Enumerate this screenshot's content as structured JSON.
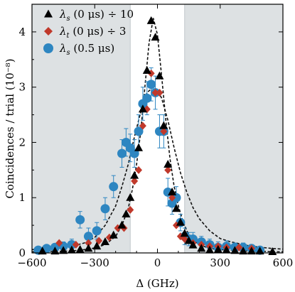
{
  "chart_data": {
    "type": "scatter",
    "xlabel": "Δ (GHz)",
    "ylabel": "Coincidences / trial (10⁻⁸)",
    "xlim": [
      -600,
      600
    ],
    "ylim": [
      0,
      4.5
    ],
    "xticks": [
      -600,
      -300,
      0,
      300,
      600
    ],
    "xtick_labels": [
      "−600",
      "−300",
      "0",
      "300",
      "600"
    ],
    "yticks": [
      0,
      1,
      2,
      3,
      4
    ],
    "ytick_labels": [
      "0",
      "1",
      "2",
      "3",
      "4"
    ],
    "shaded_x_ranges": [
      [
        -600,
        -130
      ],
      [
        130,
        600
      ]
    ],
    "shade_color": "#dde1e3",
    "grid": false,
    "legend_position": "top-left",
    "legend": {
      "s1": {
        "prefix": "λ",
        "sub": "s",
        "suffix": " (0 μs) ÷ 10"
      },
      "s2": {
        "prefix": "λ",
        "sub": "t",
        "suffix": " (0 μs) ÷ 3"
      },
      "s3": {
        "prefix": "λ",
        "sub": "s",
        "suffix": " (0.5 μs)"
      }
    },
    "series": [
      {
        "key": "s1",
        "marker": "triangle",
        "color": "#000000",
        "x": [
          -550,
          -490,
          -450,
          -410,
          -370,
          -330,
          -290,
          -250,
          -210,
          -170,
          -150,
          -130,
          -110,
          -90,
          -70,
          -50,
          -30,
          -10,
          10,
          30,
          50,
          70,
          90,
          110,
          130,
          150,
          170,
          210,
          250,
          290,
          330,
          370,
          410,
          450,
          490,
          550
        ],
        "y": [
          0.03,
          0.03,
          0.04,
          0.05,
          0.06,
          0.08,
          0.12,
          0.2,
          0.32,
          0.5,
          0.7,
          1.0,
          1.4,
          1.9,
          2.6,
          3.3,
          4.2,
          3.9,
          3.2,
          2.3,
          1.6,
          1.1,
          0.8,
          0.55,
          0.35,
          0.22,
          0.14,
          0.08,
          0.05,
          0.06,
          0.05,
          0.04,
          0.03,
          0.03,
          0.03,
          0.02
        ],
        "yerr": []
      },
      {
        "key": "s2",
        "marker": "diamond",
        "color": "#c0392b",
        "x": [
          -470,
          -390,
          -330,
          -280,
          -230,
          -190,
          -160,
          -130,
          -110,
          -90,
          -70,
          -50,
          -30,
          -10,
          10,
          30,
          50,
          70,
          90,
          110,
          130,
          170,
          210,
          250,
          290,
          330,
          390,
          450
        ],
        "y": [
          0.18,
          0.15,
          0.18,
          0.22,
          0.28,
          0.45,
          0.45,
          0.78,
          1.3,
          1.5,
          2.3,
          2.6,
          3.25,
          2.9,
          2.9,
          2.2,
          1.5,
          1.0,
          0.5,
          0.3,
          0.25,
          0.18,
          0.15,
          0.12,
          0.12,
          0.1,
          0.1,
          0.08
        ],
        "yerr": []
      },
      {
        "key": "s3",
        "marker": "circle",
        "color": "#2e86c1",
        "x": [
          -570,
          -530,
          -490,
          -450,
          -410,
          -370,
          -330,
          -290,
          -250,
          -210,
          -170,
          -150,
          -130,
          -110,
          -90,
          -70,
          -50,
          -30,
          -10,
          10,
          30,
          50,
          70,
          90,
          110,
          130,
          150,
          170,
          210,
          250,
          290,
          330,
          370,
          410,
          450,
          490
        ],
        "y": [
          0.05,
          0.08,
          0.1,
          0.12,
          0.15,
          0.6,
          0.3,
          0.4,
          0.8,
          1.2,
          1.8,
          2.0,
          1.9,
          1.8,
          2.2,
          2.7,
          2.8,
          3.05,
          2.9,
          2.2,
          2.2,
          1.1,
          0.9,
          1.0,
          0.55,
          0.3,
          0.25,
          0.25,
          0.2,
          0.15,
          0.1,
          0.12,
          0.1,
          0.1,
          0.08,
          0.05
        ],
        "yerr": [
          0.05,
          0.06,
          0.07,
          0.08,
          0.1,
          0.15,
          0.15,
          0.15,
          0.2,
          0.2,
          0.25,
          0.25,
          0.25,
          0.25,
          0.3,
          0.3,
          0.3,
          0.3,
          0.3,
          0.3,
          0.3,
          0.25,
          0.2,
          0.2,
          0.15,
          0.15,
          0.12,
          0.12,
          0.1,
          0.1,
          0.1,
          0.1,
          0.08,
          0.08,
          0.07,
          0.06
        ]
      }
    ],
    "fits": [
      {
        "key": "s1",
        "x": [
          -600,
          -550,
          -500,
          -450,
          -400,
          -350,
          -300,
          -250,
          -200,
          -170,
          -140,
          -120,
          -100,
          -80,
          -60,
          -40,
          -20,
          0,
          20,
          40,
          60,
          80,
          100,
          120,
          140,
          170,
          200,
          250,
          300,
          350,
          400,
          450,
          500,
          550,
          600
        ],
        "y": [
          0.02,
          0.02,
          0.03,
          0.03,
          0.04,
          0.06,
          0.09,
          0.15,
          0.3,
          0.5,
          0.8,
          1.15,
          1.6,
          2.2,
          3.0,
          3.8,
          4.25,
          3.95,
          3.2,
          2.4,
          1.7,
          1.2,
          0.85,
          0.6,
          0.4,
          0.24,
          0.15,
          0.08,
          0.06,
          0.05,
          0.04,
          0.03,
          0.03,
          0.02,
          0.02
        ]
      },
      {
        "key": "s3",
        "x": [
          -600,
          -550,
          -500,
          -450,
          -400,
          -350,
          -300,
          -250,
          -200,
          -170,
          -140,
          -110,
          -80,
          -50,
          -20,
          0,
          20,
          50,
          80,
          110,
          140,
          170,
          200,
          250,
          300,
          350,
          400,
          450,
          500,
          550,
          600
        ],
        "y": [
          0.06,
          0.07,
          0.08,
          0.1,
          0.13,
          0.18,
          0.28,
          0.5,
          0.85,
          1.2,
          1.6,
          2.1,
          2.55,
          2.9,
          3.0,
          2.95,
          2.8,
          2.4,
          1.9,
          1.45,
          1.1,
          0.82,
          0.62,
          0.4,
          0.26,
          0.2,
          0.16,
          0.12,
          0.1,
          0.08,
          0.07
        ]
      }
    ]
  }
}
